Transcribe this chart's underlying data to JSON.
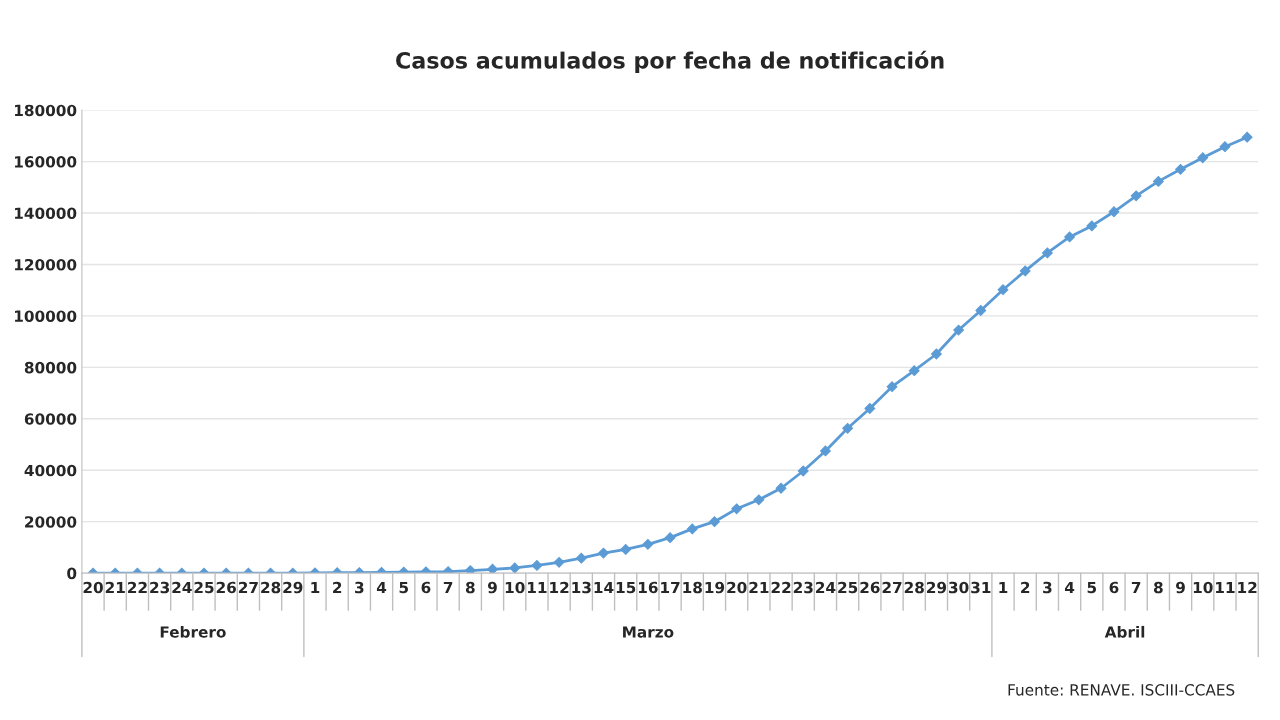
{
  "chart_data": {
    "type": "line",
    "title": "Casos acumulados por fecha de notificación",
    "categories": [
      "20",
      "21",
      "22",
      "23",
      "24",
      "25",
      "26",
      "27",
      "28",
      "29",
      "1",
      "2",
      "3",
      "4",
      "5",
      "6",
      "7",
      "8",
      "9",
      "10",
      "11",
      "12",
      "13",
      "14",
      "15",
      "16",
      "17",
      "18",
      "19",
      "20",
      "21",
      "22",
      "23",
      "24",
      "25",
      "26",
      "27",
      "28",
      "29",
      "30",
      "31",
      "1",
      "2",
      "3",
      "4",
      "5",
      "6",
      "7",
      "8",
      "9",
      "10",
      "11",
      "12"
    ],
    "series": [
      {
        "color": "#5b9bd5",
        "values": [
          0,
          0,
          0,
          0,
          0,
          0,
          0,
          0,
          0,
          0,
          100,
          150,
          200,
          300,
          400,
          500,
          600,
          1000,
          1500,
          2000,
          3000,
          4200,
          5800,
          7800,
          9200,
          11200,
          13800,
          17200,
          20000,
          25000,
          28500,
          33000,
          39700,
          47500,
          56300,
          64000,
          72500,
          78700,
          85200,
          94500,
          102100,
          110200,
          117500,
          124500,
          130700,
          135000,
          140500,
          146700,
          152300,
          157000,
          161500,
          165800,
          169500
        ]
      }
    ],
    "ylim": [
      0,
      180000
    ],
    "yticks": [
      0,
      20000,
      40000,
      60000,
      80000,
      100000,
      120000,
      140000,
      160000,
      180000
    ],
    "grid": "y",
    "marker": "diamond",
    "line_style": "solid",
    "legend": false,
    "annotations": [
      "Febrero",
      "Marzo",
      "Abril",
      "Fuente: RENAVE. ISCIII-CCAES"
    ]
  }
}
